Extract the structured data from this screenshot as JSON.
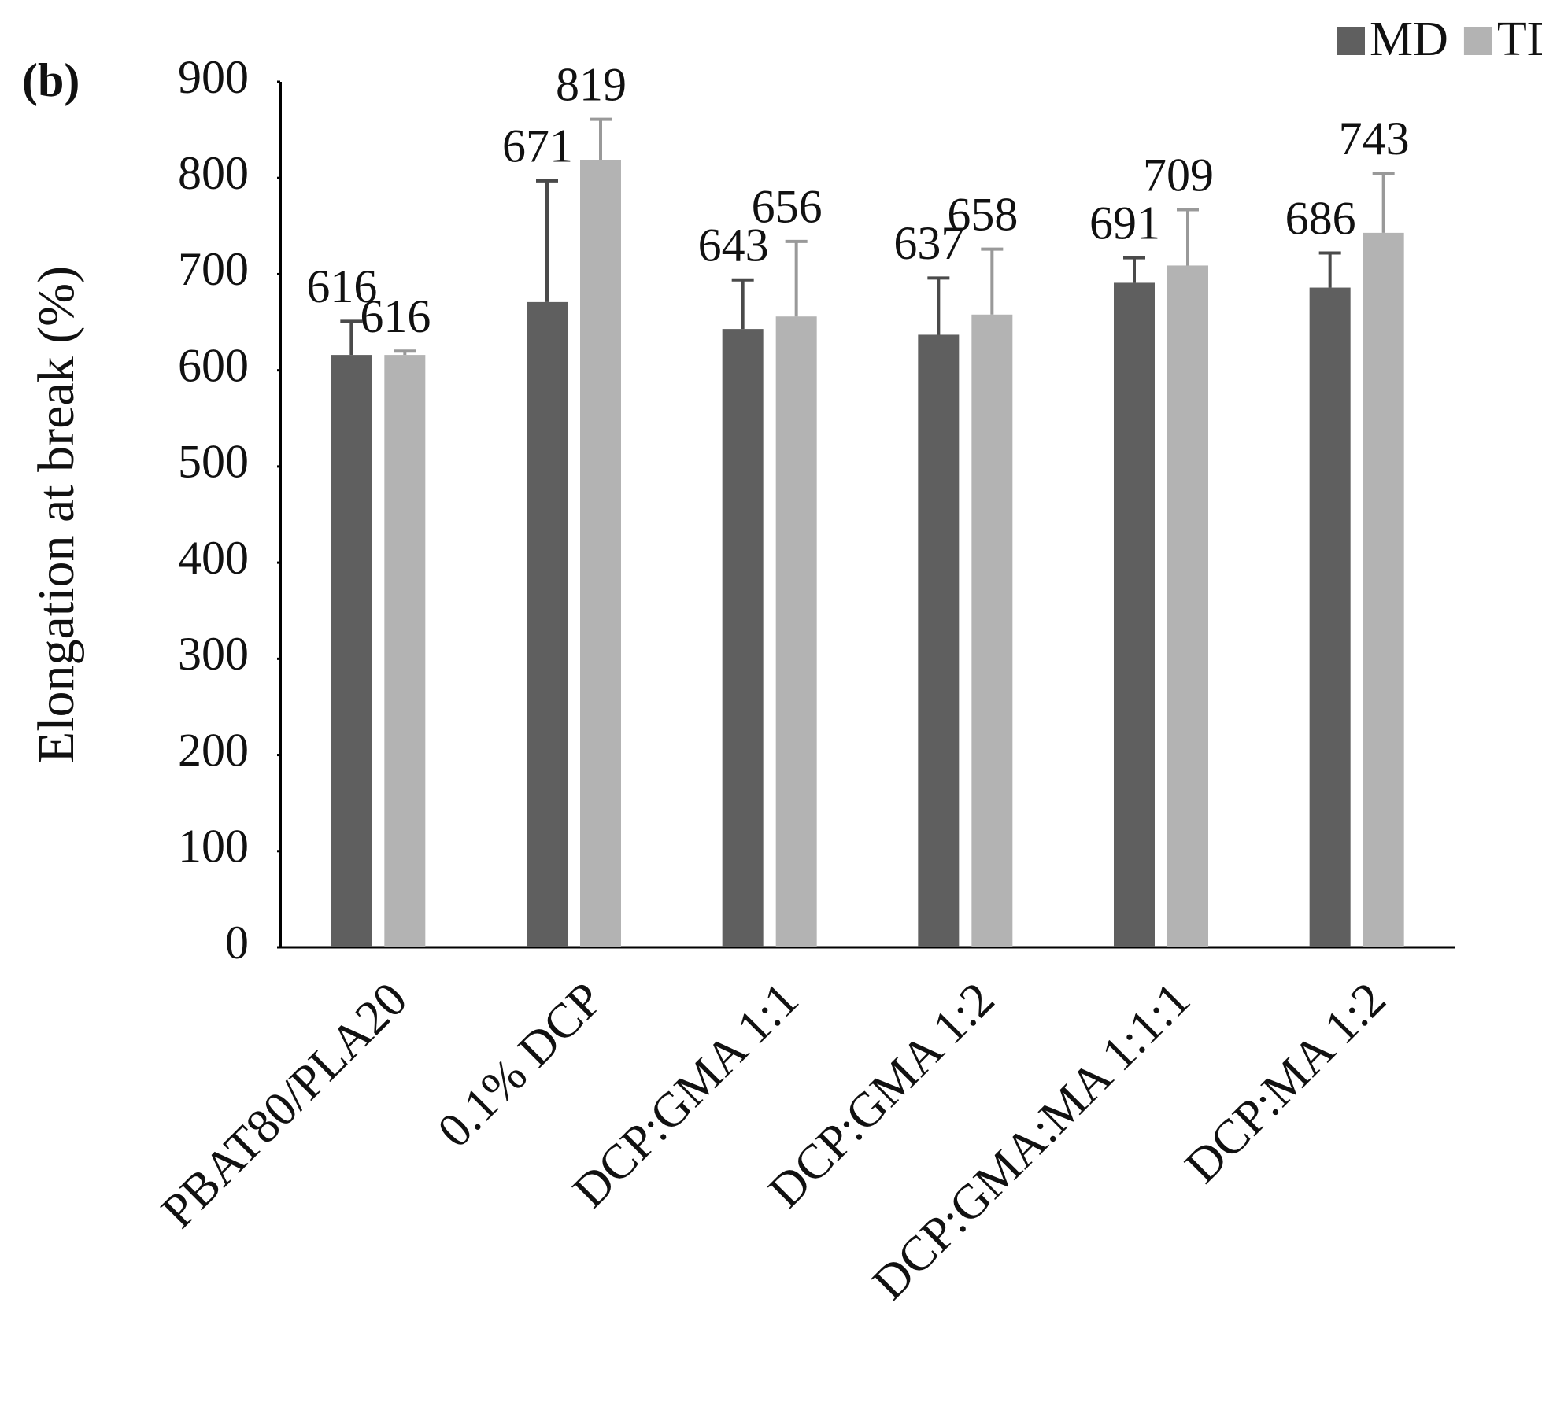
{
  "chart_data": {
    "type": "bar",
    "panel_label": "(b)",
    "y_label": "Elongation at break (%)",
    "categories": [
      "PBAT80/PLA20",
      "0.1% DCP",
      "DCP:GMA 1:1",
      "DCP:GMA 1:2",
      "DCP:GMA:MA 1:1:1",
      "DCP:MA 1:2"
    ],
    "series": [
      {
        "name": "MD",
        "color": "#5f5f5f",
        "values": [
          616,
          671,
          643,
          637,
          691,
          686
        ],
        "errors": [
          35,
          126,
          51,
          59,
          26,
          36
        ]
      },
      {
        "name": "TD",
        "color": "#b3b3b3",
        "values": [
          616,
          819,
          656,
          658,
          709,
          743
        ],
        "errors": [
          4,
          42,
          78,
          68,
          58,
          62
        ]
      }
    ],
    "ylim": [
      0,
      900
    ],
    "yticks": [
      0,
      100,
      200,
      300,
      400,
      500,
      600,
      700,
      800,
      900
    ],
    "legend": "top-right"
  }
}
